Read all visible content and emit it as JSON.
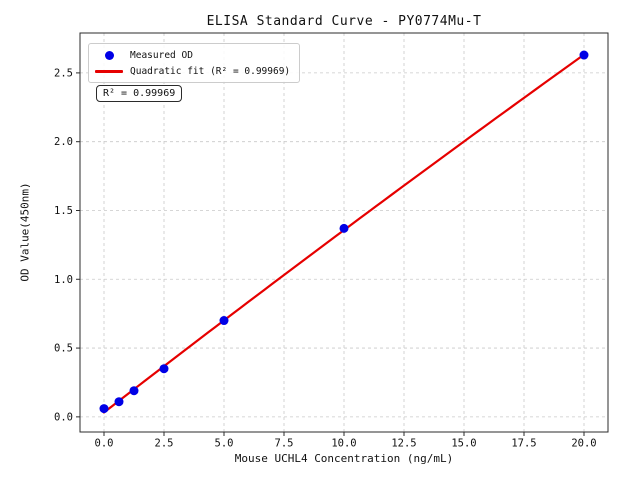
{
  "figure": {
    "background": "#ffffff"
  },
  "chart_data": {
    "type": "scatter",
    "title": "ELISA Standard Curve - PY0774Mu-T",
    "xlabel": "Mouse UCHL4 Concentration (ng/mL)",
    "ylabel": "OD Value(450nm)",
    "xlim": [
      -1,
      21
    ],
    "ylim": [
      -0.11,
      2.79
    ],
    "xticks": [
      0.0,
      2.5,
      5.0,
      7.5,
      10.0,
      12.5,
      15.0,
      17.5,
      20.0
    ],
    "yticks": [
      0.0,
      0.5,
      1.0,
      1.5,
      2.0,
      2.5
    ],
    "grid": true,
    "grid_style": "dashed",
    "grid_color": "#c9c9c9",
    "spine_color": "#2b2b2b",
    "series": [
      {
        "name": "Measured OD",
        "type": "scatter",
        "color": "#0000e6",
        "x": [
          0,
          0.625,
          1.25,
          2.5,
          5,
          10,
          20
        ],
        "y": [
          0.06,
          0.11,
          0.19,
          0.35,
          0.7,
          1.37,
          2.63
        ]
      },
      {
        "name": "Quadratic fit (R² = 0.99969)",
        "type": "quadratic-fit-line",
        "color": "#e60000",
        "fit_of_series": 0,
        "x_range": [
          0,
          20
        ]
      }
    ],
    "legend": {
      "position": "upper-left",
      "items": [
        {
          "label": "Measured OD",
          "marker": "dot",
          "color": "#0000e6"
        },
        {
          "label": "Quadratic fit (R² = 0.99969)",
          "marker": "line",
          "color": "#e60000"
        }
      ]
    },
    "annotation": {
      "text": "R² = 0.99969"
    }
  }
}
